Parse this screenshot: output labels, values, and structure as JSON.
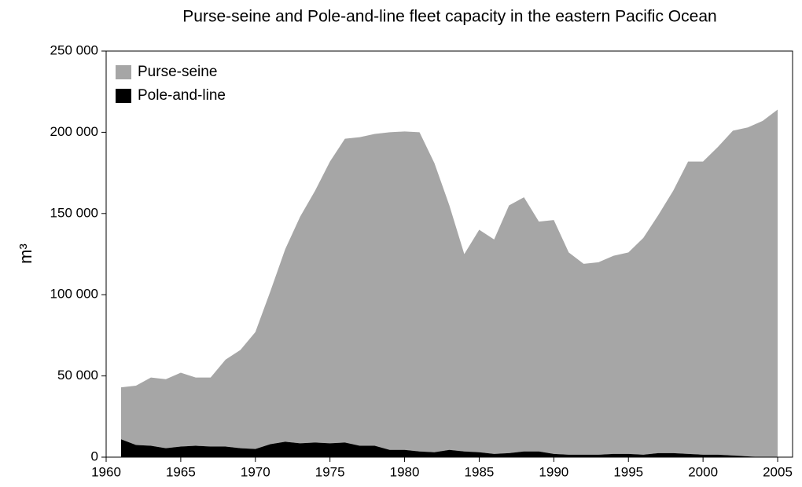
{
  "chart_data": {
    "type": "stacked_area",
    "title": "Purse-seine and Pole-and-line fleet capacity in the eastern Pacific Ocean",
    "y_label": "m³",
    "x": [
      1961,
      1962,
      1963,
      1964,
      1965,
      1966,
      1967,
      1968,
      1969,
      1970,
      1971,
      1972,
      1973,
      1974,
      1975,
      1976,
      1977,
      1978,
      1979,
      1980,
      1981,
      1982,
      1983,
      1984,
      1985,
      1986,
      1987,
      1988,
      1989,
      1990,
      1991,
      1992,
      1993,
      1994,
      1995,
      1996,
      1997,
      1998,
      1999,
      2000,
      2001,
      2002,
      2003,
      2004,
      2005
    ],
    "series": [
      {
        "name": "Pole-and-line",
        "color": "#000000",
        "values": [
          11000,
          7500,
          7000,
          5500,
          6500,
          7000,
          6500,
          6500,
          5500,
          5000,
          8000,
          9500,
          8500,
          9000,
          8500,
          9000,
          7000,
          7000,
          4500,
          4500,
          3500,
          3000,
          4500,
          3500,
          3000,
          2000,
          2500,
          3500,
          3500,
          2000,
          1500,
          1500,
          1500,
          2000,
          2000,
          1500,
          2500,
          2500,
          2000,
          1500,
          1500,
          1000,
          500,
          0,
          0
        ]
      },
      {
        "name": "Purse-seine",
        "color": "#a6a6a6",
        "values": [
          32000,
          36500,
          42000,
          42500,
          45500,
          42000,
          42500,
          53500,
          60500,
          72000,
          94000,
          118500,
          139500,
          155000,
          173500,
          187000,
          190000,
          192000,
          195500,
          196000,
          196500,
          178000,
          150500,
          121500,
          137000,
          132000,
          152500,
          156500,
          141500,
          144000,
          124500,
          117500,
          118500,
          122000,
          124000,
          133500,
          146500,
          161500,
          180000,
          180500,
          189500,
          200000,
          202500,
          207000,
          214000
        ]
      }
    ],
    "xlim": [
      1960,
      2006
    ],
    "xticks": [
      1960,
      1965,
      1970,
      1975,
      1980,
      1985,
      1990,
      1995,
      2000,
      2005
    ],
    "ylim": [
      0,
      250000
    ],
    "yticks": [
      0,
      {
        "value": 50000,
        "label": "50 000"
      },
      {
        "value": 100000,
        "label": "100 000"
      },
      {
        "value": 150000,
        "label": "150 000"
      },
      {
        "value": 200000,
        "label": "200 000"
      },
      {
        "value": 250000,
        "label": "250 000"
      }
    ],
    "legend": "upper left",
    "grid": false
  }
}
